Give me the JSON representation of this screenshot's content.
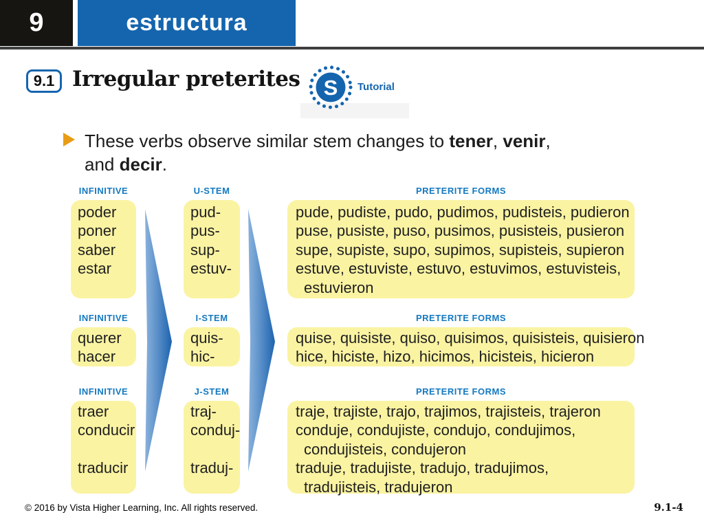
{
  "header": {
    "unit_number": "9",
    "section_label": "estructura"
  },
  "title": {
    "code": "9.1",
    "text": "Irregular preterites",
    "logo_letter": "S",
    "tutorial_label": "Tutorial"
  },
  "bullet": {
    "seg1": "These verbs observe similar stem changes to ",
    "bold1": "tener",
    "seg2": ", ",
    "bold2": "venir",
    "seg3": ",",
    "seg4": "and ",
    "bold3": "decir",
    "seg5": "."
  },
  "table": {
    "groups": [
      {
        "headers": [
          "INFINITIVE",
          "U-STEM",
          "PRETERITE FORMS"
        ],
        "columns": [
          {
            "lines": [
              {
                "text": "poder"
              },
              {
                "text": "poner"
              },
              {
                "text": "saber"
              },
              {
                "text": "estar"
              }
            ]
          },
          {
            "lines": [
              {
                "text": "pud-"
              },
              {
                "text": "pus-"
              },
              {
                "text": "sup-"
              },
              {
                "text": "estuv-"
              }
            ]
          },
          {
            "lines": [
              {
                "text": "pude, pudiste, pudo, pudimos, pudisteis, pudieron"
              },
              {
                "text": "puse, pusiste, puso, pusimos, pusisteis, pusieron"
              },
              {
                "text": "supe, supiste, supo, supimos, supisteis, supieron"
              },
              {
                "text": "estuve, estuviste, estuvo, estuvimos, estuvisteis,"
              },
              {
                "text": "estuvieron",
                "indent": true
              }
            ]
          }
        ]
      },
      {
        "headers": [
          "INFINITIVE",
          "I-STEM",
          "PRETERITE FORMS"
        ],
        "columns": [
          {
            "lines": [
              {
                "text": "querer"
              },
              {
                "text": "hacer"
              }
            ]
          },
          {
            "lines": [
              {
                "text": "quis-"
              },
              {
                "text": "hic-"
              }
            ]
          },
          {
            "lines": [
              {
                "text": "quise, quisiste, quiso, quisimos, quisisteis, quisieron"
              },
              {
                "text": "hice, hiciste, hizo, hicimos, hicisteis, hicieron"
              }
            ]
          }
        ]
      },
      {
        "headers": [
          "INFINITIVE",
          "J-STEM",
          "PRETERITE FORMS"
        ],
        "columns": [
          {
            "lines": [
              {
                "text": "traer"
              },
              {
                "text": "conducir"
              },
              {
                "text": ""
              },
              {
                "text": "traducir"
              }
            ]
          },
          {
            "lines": [
              {
                "text": "traj-"
              },
              {
                "text": "conduj-"
              },
              {
                "text": ""
              },
              {
                "text": "traduj-"
              }
            ]
          },
          {
            "lines": [
              {
                "text": "traje, trajiste, trajo, trajimos, trajisteis, trajeron"
              },
              {
                "text": "conduje, condujiste, condujo, condujimos,"
              },
              {
                "text": "condujisteis, condujeron",
                "indent": true
              },
              {
                "text": "traduje, tradujiste, tradujo, tradujimos,"
              },
              {
                "text": "tradujisteis, tradujeron",
                "indent": true
              }
            ]
          }
        ]
      }
    ]
  },
  "footer": {
    "copyright": "© 2016 by Vista Higher Learning, Inc. All rights reserved.",
    "page": "9.1-4"
  },
  "colors": {
    "black": "#171512",
    "blue": "#1565ae",
    "header_blue": "#1479c0",
    "yellow": "#faf3a2",
    "orange": "#ea9c14",
    "arrow_light": "#8ab2dd",
    "arrow_dark": "#1d63ae"
  }
}
